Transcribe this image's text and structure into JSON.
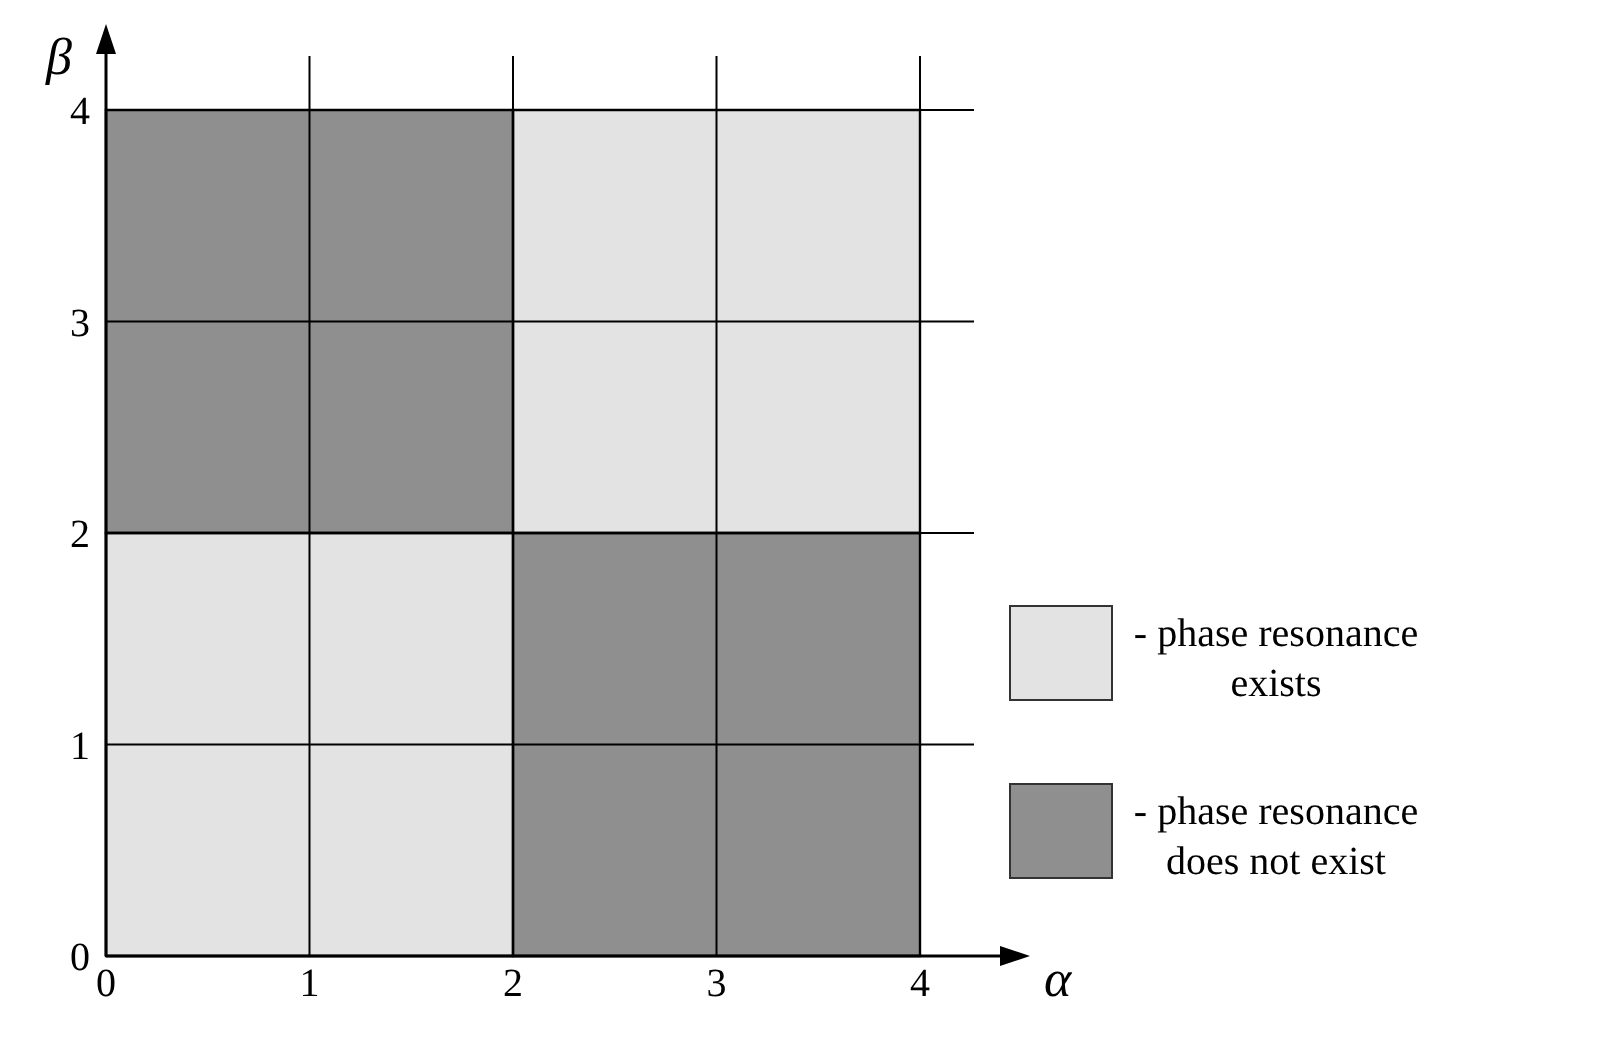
{
  "chart_data": {
    "type": "bar",
    "xlabel": "α",
    "ylabel": "β",
    "x": [
      1,
      3
    ],
    "xlim": [
      0,
      4
    ],
    "ylim": [
      0,
      4
    ],
    "xticks": [
      0,
      1,
      2,
      3,
      4
    ],
    "yticks": [
      0,
      1,
      2,
      3,
      4
    ],
    "grid": true,
    "legend": "right",
    "series": [
      {
        "name": "- phase resonance exists",
        "color": "#e3e3e3",
        "values": [
          2,
          2
        ],
        "base": [
          0,
          2
        ]
      },
      {
        "name": "- phase resonance does not exist",
        "color": "#8f8f8f",
        "values": [
          2,
          2
        ],
        "base": [
          2,
          0
        ]
      }
    ]
  }
}
